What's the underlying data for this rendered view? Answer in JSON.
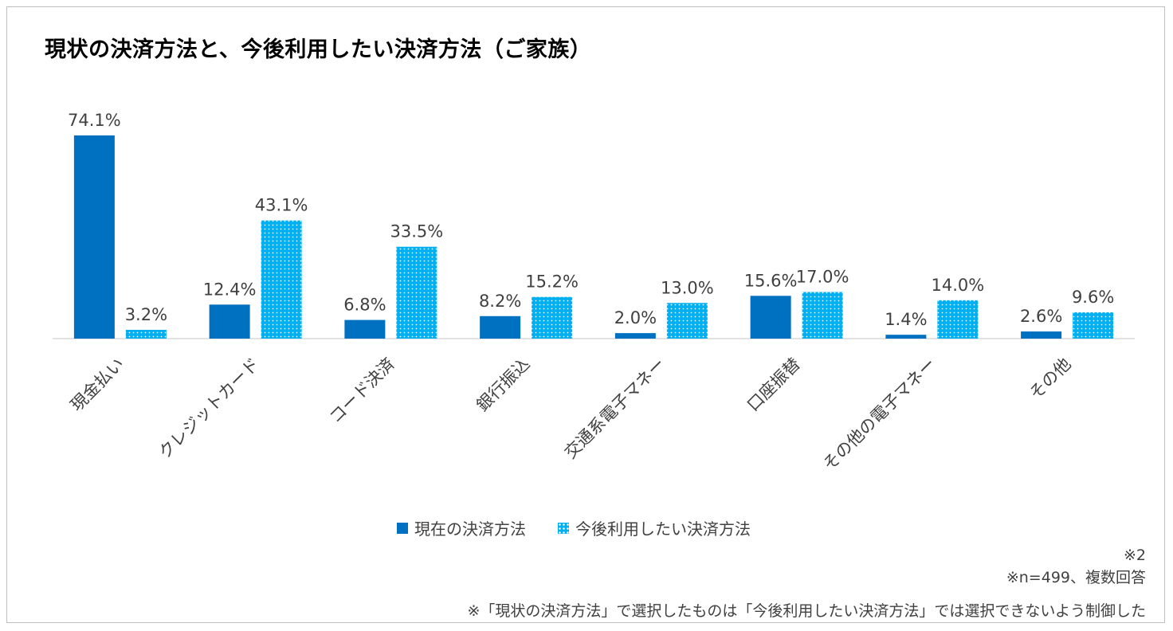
{
  "chart_data": {
    "type": "bar",
    "title": "現状の決済方法と、今後利用したい決済方法（ご家族）",
    "categories": [
      "現金払い",
      "クレジットカード",
      "コード決済",
      "銀行振込",
      "交通系電子マネー",
      "口座振替",
      "その他の電子マネー",
      "その他"
    ],
    "series": [
      {
        "name": "現在の決済方法",
        "values": [
          74.1,
          12.4,
          6.8,
          8.2,
          2.0,
          15.6,
          1.4,
          2.6
        ],
        "labels": [
          "74.1%",
          "12.4%",
          "6.8%",
          "8.2%",
          "2.0%",
          "15.6%",
          "1.4%",
          "2.6%"
        ],
        "color": "#0070c0",
        "pattern": "solid"
      },
      {
        "name": "今後利用したい決済方法",
        "values": [
          3.2,
          43.1,
          33.5,
          15.2,
          13.0,
          17.0,
          14.0,
          9.6
        ],
        "labels": [
          "3.2%",
          "43.1%",
          "33.5%",
          "15.2%",
          "13.0%",
          "17.0%",
          "14.0%",
          "9.6%"
        ],
        "color": "#00b0f0",
        "pattern": "dotted"
      }
    ],
    "xlabel": "",
    "ylabel": "",
    "ylim": [
      0,
      74.1
    ],
    "grid": false,
    "legend": "bottom"
  },
  "notes": {
    "mark": "※2",
    "sample": "※n=499、複数回答",
    "footnote": "※「現状の決済方法」で選択したものは「今後利用したい決済方法」では選択できないよう制御した"
  }
}
